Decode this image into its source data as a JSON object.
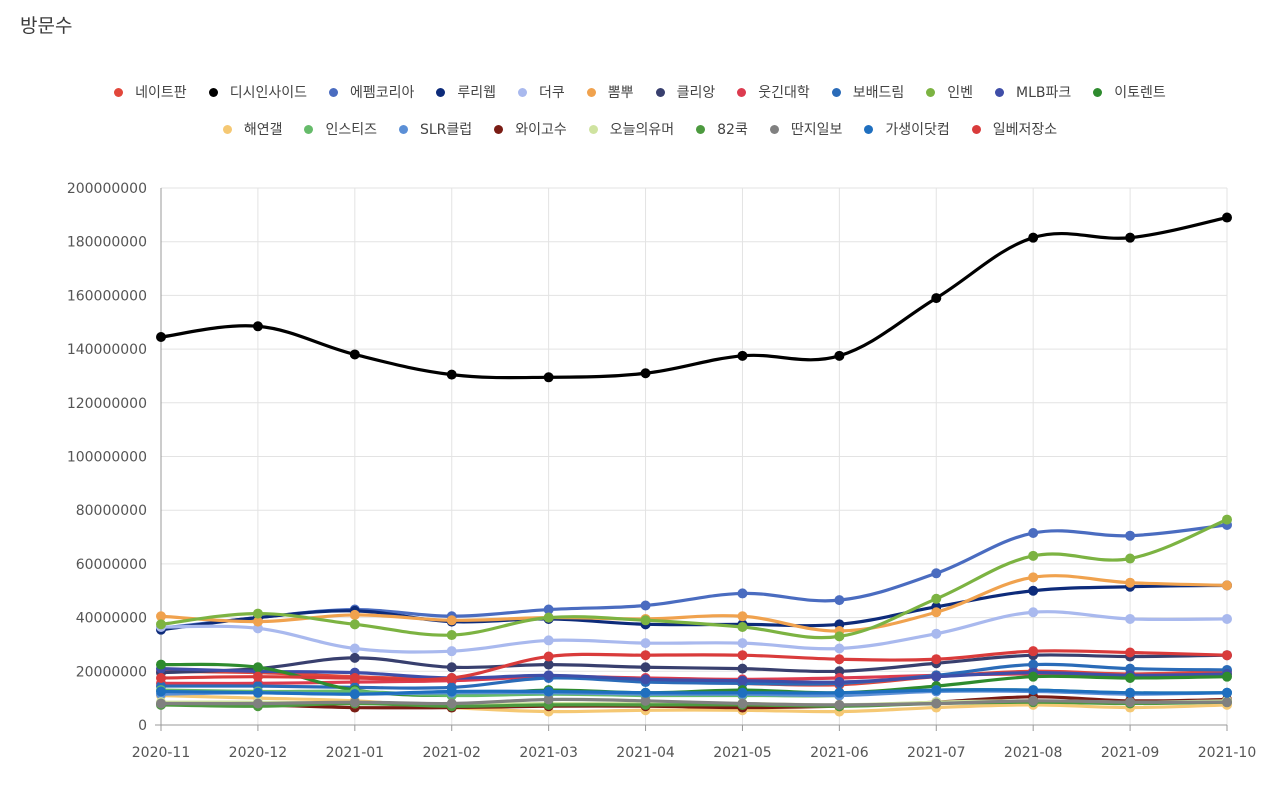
{
  "title": "방문수",
  "chart_data": {
    "type": "line",
    "title": "방문수",
    "x": [
      "2020-11",
      "2020-12",
      "2021-01",
      "2021-02",
      "2021-03",
      "2021-04",
      "2021-05",
      "2021-06",
      "2021-07",
      "2021-08",
      "2021-09",
      "2021-10"
    ],
    "ylim": [
      0,
      200000000
    ],
    "yticks": [
      "0",
      "20000000",
      "40000000",
      "60000000",
      "80000000",
      "100000000",
      "120000000",
      "140000000",
      "160000000",
      "180000000",
      "200000000"
    ],
    "grid": true,
    "legend_position": "top",
    "series": [
      {
        "name": "네이트판",
        "color": "#e2473b",
        "values": [
          20000000,
          19500000,
          18000000,
          17000000,
          18000000,
          17000000,
          15500000,
          15000000,
          18000000,
          20000000,
          19000000,
          20000000
        ]
      },
      {
        "name": "디시인사이드",
        "color": "#000000",
        "values": [
          144500000,
          148500000,
          138000000,
          130500000,
          129500000,
          131000000,
          137500000,
          137500000,
          159000000,
          181500000,
          181500000,
          189000000
        ]
      },
      {
        "name": "에펨코리아",
        "color": "#4a6cc0",
        "values": [
          36000000,
          40000000,
          43000000,
          40500000,
          43000000,
          44500000,
          49000000,
          46500000,
          56500000,
          71500000,
          70500000,
          74500000
        ]
      },
      {
        "name": "루리웹",
        "color": "#0d2b7a",
        "values": [
          35500000,
          40000000,
          42500000,
          38500000,
          39500000,
          37500000,
          37500000,
          37500000,
          44000000,
          50000000,
          51500000,
          52000000
        ]
      },
      {
        "name": "더쿠",
        "color": "#a9b9ee",
        "values": [
          36500000,
          36000000,
          28500000,
          27500000,
          31500000,
          30500000,
          30500000,
          28500000,
          34000000,
          42000000,
          39500000,
          39500000
        ]
      },
      {
        "name": "뽐뿌",
        "color": "#f0a24e",
        "values": [
          40500000,
          38500000,
          41000000,
          39000000,
          40000000,
          39500000,
          40500000,
          35000000,
          42000000,
          55000000,
          53000000,
          52000000
        ]
      },
      {
        "name": "클리앙",
        "color": "#383f6e",
        "values": [
          19500000,
          21000000,
          25000000,
          21500000,
          22500000,
          21500000,
          21000000,
          20000000,
          23000000,
          26000000,
          25500000,
          26000000
        ]
      },
      {
        "name": "웃긴대학",
        "color": "#dc3b4f",
        "values": [
          15500000,
          15500000,
          16000000,
          16500000,
          18000000,
          17500000,
          17000000,
          17500000,
          18500000,
          19000000,
          18500000,
          19000000
        ]
      },
      {
        "name": "보배드림",
        "color": "#2a6bb8",
        "values": [
          14500000,
          14500000,
          14000000,
          14000000,
          17500000,
          16000000,
          15500000,
          15500000,
          18500000,
          22500000,
          21000000,
          20500000
        ]
      },
      {
        "name": "인벤",
        "color": "#7cb342",
        "values": [
          37500000,
          41500000,
          37500000,
          33500000,
          40000000,
          39000000,
          36500000,
          33000000,
          47000000,
          63000000,
          62000000,
          76500000
        ]
      },
      {
        "name": "MLB파크",
        "color": "#3f4ea8",
        "values": [
          21000000,
          20000000,
          19500000,
          17500000,
          18500000,
          17000000,
          16500000,
          16000000,
          18000000,
          19500000,
          18500000,
          19000000
        ]
      },
      {
        "name": "이토렌트",
        "color": "#2e8b2e",
        "values": [
          22500000,
          21500000,
          13000000,
          11000000,
          13000000,
          12000000,
          13000000,
          12000000,
          14500000,
          18000000,
          17500000,
          18000000
        ]
      },
      {
        "name": "해연갤",
        "color": "#f5c873",
        "values": [
          11000000,
          10000000,
          9000000,
          6500000,
          5000000,
          5500000,
          5500000,
          5000000,
          6500000,
          7500000,
          6500000,
          7500000
        ]
      },
      {
        "name": "인스티즈",
        "color": "#66bb6a",
        "values": [
          13000000,
          12500000,
          12500000,
          11000000,
          11500000,
          11000000,
          11000000,
          11000000,
          13000000,
          13000000,
          12000000,
          12000000
        ]
      },
      {
        "name": "SLR클럽",
        "color": "#5b8fd6",
        "values": [
          11500000,
          12000000,
          11500000,
          12000000,
          12000000,
          11500000,
          11500000,
          11000000,
          12500000,
          12500000,
          11500000,
          12000000
        ]
      },
      {
        "name": "와이고수",
        "color": "#7a1c14",
        "values": [
          8000000,
          7500000,
          6500000,
          6500000,
          7000000,
          7000000,
          6500000,
          7000000,
          8500000,
          10500000,
          9000000,
          9500000
        ]
      },
      {
        "name": "오늘의유머",
        "color": "#cfe3a0",
        "values": [
          8500000,
          8500000,
          8000000,
          7500000,
          8000000,
          8000000,
          8000000,
          7500000,
          8500000,
          9000000,
          8500000,
          9000000
        ]
      },
      {
        "name": "82쿡",
        "color": "#4c9a3f",
        "values": [
          7500000,
          7000000,
          8000000,
          7000000,
          7500000,
          7500000,
          7500000,
          7000000,
          8000000,
          8500000,
          8000000,
          8500000
        ]
      },
      {
        "name": "딴지일보",
        "color": "#808080",
        "values": [
          8000000,
          8000000,
          8500000,
          8000000,
          9500000,
          9000000,
          8000000,
          7500000,
          8000000,
          9000000,
          8500000,
          8500000
        ]
      },
      {
        "name": "가생이닷컴",
        "color": "#1f6fbf",
        "values": [
          12500000,
          12000000,
          11500000,
          12500000,
          12500000,
          12000000,
          12000000,
          12000000,
          13000000,
          13000000,
          12000000,
          12000000
        ]
      },
      {
        "name": "일베저장소",
        "color": "#d93b3b",
        "values": [
          17500000,
          18000000,
          17500000,
          17500000,
          25500000,
          26000000,
          26000000,
          24500000,
          24500000,
          27500000,
          27000000,
          26000000
        ]
      }
    ]
  }
}
